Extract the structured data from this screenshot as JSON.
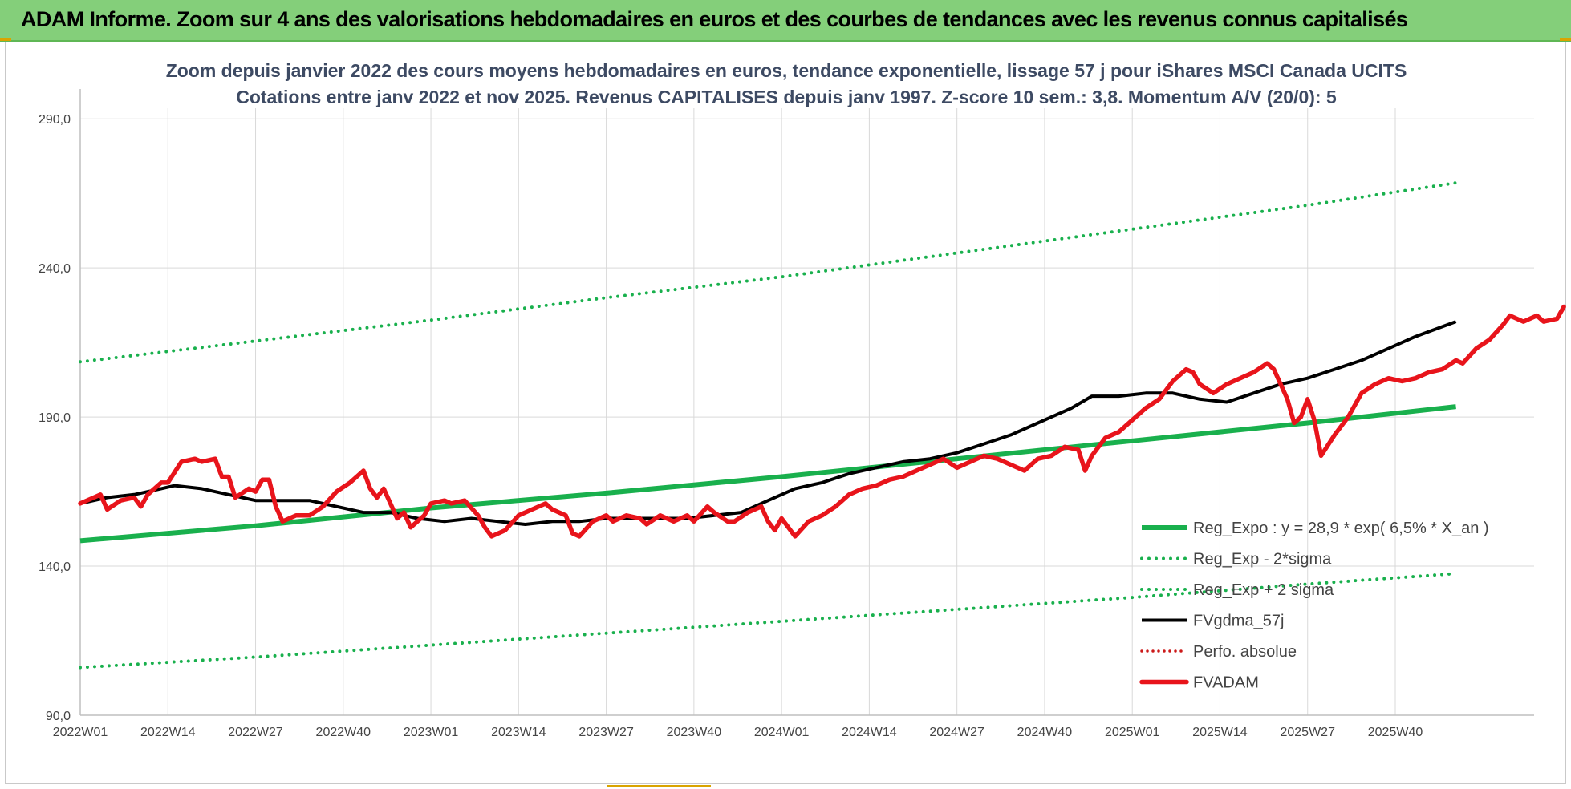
{
  "banner": {
    "title": "ADAM Informe. Zoom sur 4 ans des valorisations hebdomadaires en euros et des courbes de tendances avec les revenus connus capitalisés"
  },
  "colors": {
    "banner_bg": "#84cf7a",
    "reg_expo": "#19b04d",
    "fvgdma": "#000000",
    "fvadam": "#e8141b",
    "perfo": "#cc1a1a",
    "grid": "#d9d9d9"
  },
  "chart_data": {
    "type": "line",
    "title_line1": "Zoom depuis janvier 2022 des cours moyens hebdomadaires en euros, tendance exponentielle, lissage 57 j pour iShares MSCI Canada UCITS",
    "title_line2": "Cotations entre janv 2022 et nov 2025. Revenus CAPITALISES depuis janv 1997. Z-score 10 sem.: 3,8. Momentum A/V (20/0): 5",
    "ylim": [
      90,
      300
    ],
    "y_ticks": [
      90,
      140,
      190,
      240,
      290
    ],
    "y_tick_labels": [
      "90,0",
      "140,0",
      "190,0",
      "240,0",
      "290,0"
    ],
    "x_range_weeks": [
      0,
      198
    ],
    "x_ticks": [
      {
        "week": 0,
        "label": "2022W01"
      },
      {
        "week": 13,
        "label": "2022W14"
      },
      {
        "week": 26,
        "label": "2022W27"
      },
      {
        "week": 39,
        "label": "2022W40"
      },
      {
        "week": 52,
        "label": "2023W01"
      },
      {
        "week": 65,
        "label": "2023W14"
      },
      {
        "week": 78,
        "label": "2023W27"
      },
      {
        "week": 91,
        "label": "2023W40"
      },
      {
        "week": 104,
        "label": "2024W01"
      },
      {
        "week": 117,
        "label": "2024W14"
      },
      {
        "week": 130,
        "label": "2024W27"
      },
      {
        "week": 143,
        "label": "2024W40"
      },
      {
        "week": 156,
        "label": "2025W01"
      },
      {
        "week": 169,
        "label": "2025W14"
      },
      {
        "week": 182,
        "label": "2025W27"
      },
      {
        "week": 195,
        "label": "2025W40"
      }
    ],
    "series": [
      {
        "name": "Reg_Expo : y = 28,9 * exp( 6,5% *  X_an )",
        "style": "solid-thick",
        "points": [
          [
            0,
            148.5
          ],
          [
            26,
            153.5
          ],
          [
            52,
            159.5
          ],
          [
            78,
            164.5
          ],
          [
            104,
            170
          ],
          [
            130,
            176
          ],
          [
            156,
            182
          ],
          [
            182,
            188
          ],
          [
            204,
            193.5
          ]
        ]
      },
      {
        "name": "Reg_Exp - 2*sigma",
        "style": "dotted-green",
        "points": [
          [
            0,
            106
          ],
          [
            26,
            109.5
          ],
          [
            52,
            113.5
          ],
          [
            78,
            117.5
          ],
          [
            104,
            121.5
          ],
          [
            130,
            125.5
          ],
          [
            156,
            129.5
          ],
          [
            182,
            134
          ],
          [
            204,
            137.5
          ]
        ]
      },
      {
        "name": "Reg_Exp + 2 sigma",
        "style": "dotted-green",
        "points": [
          [
            0,
            208.5
          ],
          [
            26,
            215.5
          ],
          [
            52,
            222.5
          ],
          [
            78,
            230
          ],
          [
            104,
            237
          ],
          [
            130,
            245
          ],
          [
            156,
            253
          ],
          [
            182,
            261
          ],
          [
            204,
            268.5
          ]
        ]
      },
      {
        "name": "FVgdma_57j",
        "style": "solid-black",
        "points": [
          [
            0,
            161
          ],
          [
            4,
            163
          ],
          [
            8,
            164
          ],
          [
            12,
            166
          ],
          [
            14,
            167
          ],
          [
            18,
            166
          ],
          [
            22,
            164
          ],
          [
            26,
            162
          ],
          [
            30,
            162
          ],
          [
            34,
            162
          ],
          [
            38,
            160
          ],
          [
            42,
            158
          ],
          [
            46,
            158
          ],
          [
            50,
            156
          ],
          [
            54,
            155
          ],
          [
            58,
            156
          ],
          [
            62,
            155
          ],
          [
            66,
            154
          ],
          [
            70,
            155
          ],
          [
            74,
            155
          ],
          [
            78,
            156
          ],
          [
            82,
            156
          ],
          [
            86,
            156
          ],
          [
            90,
            156
          ],
          [
            94,
            157
          ],
          [
            98,
            158
          ],
          [
            102,
            162
          ],
          [
            106,
            166
          ],
          [
            110,
            168
          ],
          [
            114,
            171
          ],
          [
            118,
            173
          ],
          [
            122,
            175
          ],
          [
            126,
            176
          ],
          [
            130,
            178
          ],
          [
            134,
            181
          ],
          [
            138,
            184
          ],
          [
            142,
            188
          ],
          [
            144,
            190
          ],
          [
            147,
            193
          ],
          [
            150,
            197
          ],
          [
            154,
            197
          ],
          [
            158,
            198
          ],
          [
            162,
            198
          ],
          [
            166,
            196
          ],
          [
            170,
            195
          ],
          [
            174,
            198
          ],
          [
            178,
            201
          ],
          [
            182,
            203
          ],
          [
            186,
            206
          ],
          [
            190,
            209
          ],
          [
            194,
            213
          ],
          [
            198,
            217
          ],
          [
            204,
            222
          ]
        ]
      },
      {
        "name": "Perfo. absolue",
        "style": "dotted-red",
        "points": []
      },
      {
        "name": "FVADAM",
        "style": "solid-red",
        "points": [
          [
            0,
            161
          ],
          [
            2,
            163
          ],
          [
            3,
            164
          ],
          [
            4,
            159
          ],
          [
            6,
            162
          ],
          [
            8,
            163
          ],
          [
            9,
            160
          ],
          [
            10,
            164
          ],
          [
            12,
            168
          ],
          [
            13,
            168
          ],
          [
            15,
            175
          ],
          [
            17,
            176
          ],
          [
            18,
            175
          ],
          [
            20,
            176
          ],
          [
            21,
            170
          ],
          [
            22,
            170
          ],
          [
            23,
            163
          ],
          [
            25,
            166
          ],
          [
            26,
            165
          ],
          [
            27,
            169
          ],
          [
            28,
            169
          ],
          [
            29,
            160
          ],
          [
            30,
            155
          ],
          [
            32,
            157
          ],
          [
            34,
            157
          ],
          [
            36,
            160
          ],
          [
            38,
            165
          ],
          [
            40,
            168
          ],
          [
            42,
            172
          ],
          [
            43,
            166
          ],
          [
            44,
            163
          ],
          [
            45,
            166
          ],
          [
            46,
            161
          ],
          [
            47,
            156
          ],
          [
            48,
            158
          ],
          [
            49,
            153
          ],
          [
            51,
            157
          ],
          [
            52,
            161
          ],
          [
            54,
            162
          ],
          [
            55,
            161
          ],
          [
            57,
            162
          ],
          [
            59,
            157
          ],
          [
            60,
            153
          ],
          [
            61,
            150
          ],
          [
            63,
            152
          ],
          [
            65,
            157
          ],
          [
            67,
            159
          ],
          [
            69,
            161
          ],
          [
            70,
            159
          ],
          [
            72,
            157
          ],
          [
            73,
            151
          ],
          [
            74,
            150
          ],
          [
            76,
            155
          ],
          [
            78,
            157
          ],
          [
            79,
            155
          ],
          [
            81,
            157
          ],
          [
            83,
            156
          ],
          [
            84,
            154
          ],
          [
            86,
            157
          ],
          [
            88,
            155
          ],
          [
            90,
            157
          ],
          [
            91,
            155
          ],
          [
            93,
            160
          ],
          [
            94,
            158
          ],
          [
            96,
            155
          ],
          [
            97,
            155
          ],
          [
            99,
            158
          ],
          [
            101,
            160
          ],
          [
            102,
            155
          ],
          [
            103,
            152
          ],
          [
            104,
            156
          ],
          [
            106,
            150
          ],
          [
            108,
            155
          ],
          [
            110,
            157
          ],
          [
            112,
            160
          ],
          [
            114,
            164
          ],
          [
            116,
            166
          ],
          [
            118,
            167
          ],
          [
            120,
            169
          ],
          [
            122,
            170
          ],
          [
            124,
            172
          ],
          [
            126,
            174
          ],
          [
            128,
            176
          ],
          [
            130,
            173
          ],
          [
            132,
            175
          ],
          [
            134,
            177
          ],
          [
            136,
            176
          ],
          [
            138,
            174
          ],
          [
            140,
            172
          ],
          [
            142,
            176
          ],
          [
            144,
            177
          ],
          [
            146,
            180
          ],
          [
            148,
            179
          ],
          [
            149,
            172
          ],
          [
            150,
            177
          ],
          [
            152,
            183
          ],
          [
            154,
            185
          ],
          [
            156,
            189
          ],
          [
            158,
            193
          ],
          [
            160,
            196
          ],
          [
            162,
            202
          ],
          [
            164,
            206
          ],
          [
            165,
            205
          ],
          [
            166,
            201
          ],
          [
            168,
            198
          ],
          [
            170,
            201
          ],
          [
            172,
            203
          ],
          [
            174,
            205
          ],
          [
            176,
            208
          ],
          [
            177,
            206
          ],
          [
            179,
            196
          ],
          [
            180,
            188
          ],
          [
            181,
            190
          ],
          [
            182,
            196
          ],
          [
            183,
            189
          ],
          [
            184,
            177
          ],
          [
            186,
            184
          ],
          [
            188,
            190
          ],
          [
            190,
            198
          ],
          [
            192,
            201
          ],
          [
            194,
            203
          ],
          [
            196,
            202
          ],
          [
            198,
            203
          ],
          [
            200,
            205
          ],
          [
            202,
            206
          ],
          [
            204,
            209
          ],
          [
            205,
            208
          ],
          [
            207,
            213
          ],
          [
            209,
            216
          ],
          [
            211,
            221
          ],
          [
            212,
            224
          ],
          [
            214,
            222
          ],
          [
            216,
            224
          ],
          [
            217,
            222
          ],
          [
            219,
            223
          ],
          [
            220,
            227
          ]
        ]
      }
    ],
    "legend": [
      "Reg_Expo : y = 28,9 * exp( 6,5% *  X_an )",
      "Reg_Exp - 2*sigma",
      "Reg_Exp + 2 sigma",
      "FVgdma_57j",
      "Perfo. absolue",
      "FVADAM"
    ]
  }
}
